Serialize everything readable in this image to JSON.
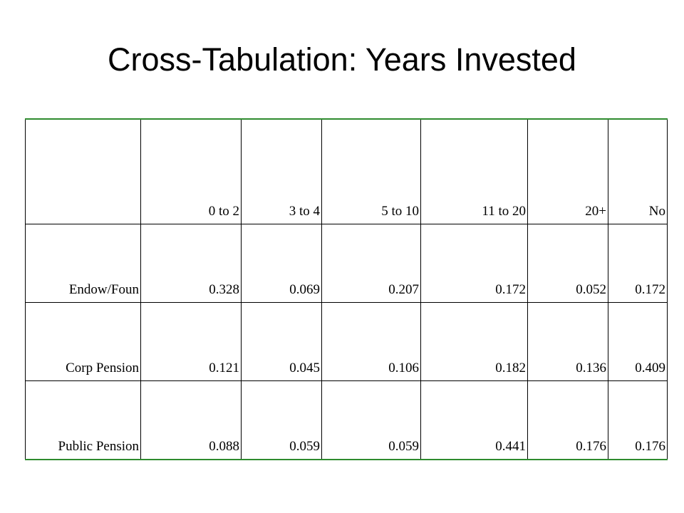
{
  "title": "Cross-Tabulation: Years Invested",
  "table": {
    "header": [
      "",
      "0 to 2",
      "3 to 4",
      "5 to 10",
      "11 to 20",
      "20+",
      "No"
    ],
    "rows": [
      [
        "Endow/Foun",
        "0.328",
        "0.069",
        "0.207",
        "0.172",
        "0.052",
        "0.172"
      ],
      [
        "Corp Pension",
        "0.121",
        "0.045",
        "0.106",
        "0.182",
        "0.136",
        "0.409"
      ],
      [
        "Public Pension",
        "0.088",
        "0.059",
        "0.059",
        "0.441",
        "0.176",
        "0.176"
      ]
    ]
  }
}
